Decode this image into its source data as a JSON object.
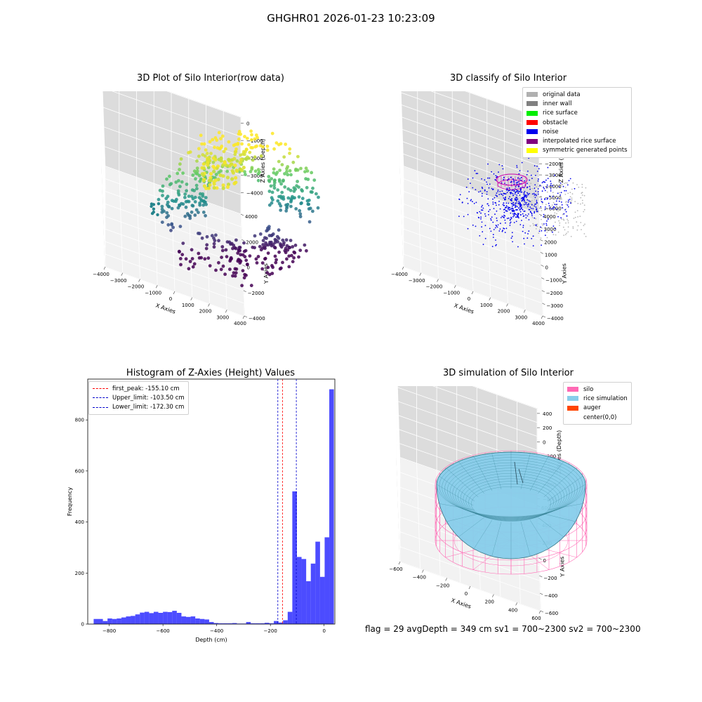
{
  "figure_title": "GHGHR01 2026-01-23 10:23:09",
  "footer": "flag = 29  avgDepth = 349 cm  sv1 = 700~2300  sv2 = 700~2300",
  "chart_data": [
    {
      "id": "raw",
      "type": "scatter",
      "projection": "3d",
      "title": "3D Plot of Silo Interior(row data)",
      "xlabel": "X Axies",
      "ylabel": "Y Axies",
      "zlabel": "Z Axies (Depth)",
      "xticks": [
        "−4000",
        "−3000",
        "−2000",
        "−1000",
        "0",
        "1000",
        "2000",
        "3000",
        "4000"
      ],
      "yticks": [
        "−4000",
        "−2000",
        "0",
        "2000",
        "4000"
      ],
      "zticks": [
        "0",
        "−1000",
        "−2000",
        "−3000",
        "−4000"
      ],
      "xlim": [
        -4000,
        4000
      ],
      "ylim": [
        -4000,
        4000
      ],
      "zlim": [
        -4500,
        0
      ],
      "colormap": "viridis",
      "grid": true
    },
    {
      "id": "classify",
      "type": "scatter",
      "projection": "3d",
      "title": "3D classify of Silo Interior",
      "xlabel": "X Axies",
      "ylabel": "Y Axies",
      "zlabel": "Z Axies (Depth)",
      "xticks": [
        "−4000",
        "−3000",
        "−2000",
        "−1000",
        "0",
        "1000",
        "2000",
        "3000",
        "4000"
      ],
      "yticks": [
        "−4000",
        "−3000",
        "−2000",
        "−1000",
        "0",
        "1000",
        "2000",
        "3000",
        "4000"
      ],
      "zticks": [
        "2000",
        "1000",
        "0",
        "−1000",
        "−2000",
        "−3000",
        "−4000",
        "−5000",
        "−6000"
      ],
      "xlim": [
        -4000,
        4000
      ],
      "ylim": [
        -4000,
        4000
      ],
      "zlim": [
        -6000,
        2000
      ],
      "legend_position": "top-right",
      "legend": [
        {
          "label": "original data",
          "color": "#b0b0b0"
        },
        {
          "label": "inner wall",
          "color": "#808080"
        },
        {
          "label": "rice surface",
          "color": "#00ee00"
        },
        {
          "label": "obstacle",
          "color": "#ff0000"
        },
        {
          "label": "noise",
          "color": "#0000ee"
        },
        {
          "label": "interpolated rice surface",
          "color": "#800080"
        },
        {
          "label": "symmetric generated points",
          "color": "#ffff00"
        }
      ],
      "grid": true
    },
    {
      "id": "histogram",
      "type": "bar",
      "title": "Histogram of Z-Axies (Height) Values",
      "xlabel": "Depth (cm)",
      "ylabel": "Frequency",
      "xlim": [
        -880,
        40
      ],
      "ylim": [
        0,
        960
      ],
      "xticks": [
        -800,
        -600,
        -400,
        -200,
        0
      ],
      "xtick_labels": [
        "−800",
        "−600",
        "−400",
        "−200",
        "0"
      ],
      "yticks": [
        0,
        200,
        400,
        600,
        800
      ],
      "bar_color": "#0000ff",
      "bin_width": 17.2,
      "bins_start": -858,
      "values": [
        20,
        20,
        12,
        22,
        20,
        22,
        26,
        30,
        32,
        38,
        45,
        48,
        43,
        48,
        44,
        48,
        47,
        52,
        44,
        30,
        28,
        30,
        22,
        20,
        18,
        8,
        4,
        3,
        3,
        3,
        4,
        2,
        2,
        8,
        3,
        3,
        3,
        5,
        3,
        12,
        6,
        15,
        48,
        520,
        263,
        255,
        168,
        237,
        323,
        185,
        340,
        920
      ],
      "lines": [
        {
          "label": "first_peak: -155.10 cm",
          "x": -155.1,
          "color": "#ff0000"
        },
        {
          "label": "Upper_limit: -103.50 cm",
          "x": -103.5,
          "color": "#0000cc"
        },
        {
          "label": "Lower_limit: -172.30 cm",
          "x": -172.3,
          "color": "#0000cc"
        }
      ],
      "legend_position": "top-left"
    },
    {
      "id": "simulation",
      "type": "surface",
      "projection": "3d",
      "title": "3D simulation of Silo Interior",
      "xlabel": "X Axies",
      "ylabel": "Y Axies",
      "zlabel": "Z Axies (Depth)",
      "xticks": [
        "−600",
        "−400",
        "−200",
        "0",
        "200",
        "400",
        "600"
      ],
      "yticks": [
        "−600",
        "−400",
        "−200",
        "0",
        "200",
        "400",
        "600"
      ],
      "zticks": [
        "400",
        "200",
        "0",
        "−200",
        "−400",
        "−600",
        "−800"
      ],
      "xlim": [
        -700,
        700
      ],
      "ylim": [
        -700,
        700
      ],
      "zlim": [
        -900,
        450
      ],
      "legend_position": "top-right",
      "legend": [
        {
          "label": "silo",
          "color": "#ff69b4"
        },
        {
          "label": "rice simulation",
          "color": "#87ceeb"
        },
        {
          "label": "auger",
          "color": "#ff4500"
        },
        {
          "label": "center(0,0)",
          "color": "#ffffff"
        }
      ],
      "grid": true
    }
  ]
}
